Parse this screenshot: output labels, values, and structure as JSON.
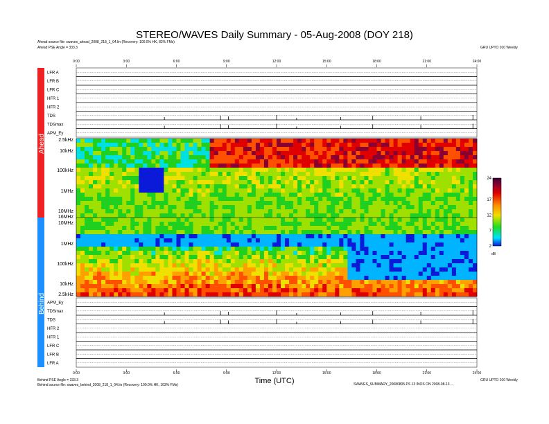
{
  "title": "STEREO/WAVES Daily Summary - 05-Aug-2008 (DOY 218)",
  "header": {
    "ahead_source": "Ahead source file: swaves_ahead_2008_218_1_04.lin (Recovery: 100.0% HK, 82% FMs)",
    "ahead_angle": "Ahead PSE Angle = 333.3",
    "credit": "GRU UPTO 010 Weekly"
  },
  "footer": {
    "behind_angle": "Behind PSE Angle = 333.3",
    "behind_source": "Behind source file: swaves_behind_2008_218_1_04.lin (Recovery: 100.0% HK, 103% FMs)",
    "path": "SWAVES_SUMMARY_20080805.PS 13 INOS ON 2008-08-13 ...",
    "credit": "GRU UPTO 010 Weekly"
  },
  "colors": {
    "ahead": "#ee2222",
    "behind": "#1e8fff",
    "blank": "#0a1ad8",
    "sat": "#3a003a"
  },
  "spacecraft": {
    "ahead_label": "Ahead",
    "behind_label": "Behind"
  },
  "chart_data": {
    "type": "heatmap",
    "xlabel": "Time (UTC)",
    "xlim": [
      "00:00",
      "24:00"
    ],
    "time_ticks": [
      "0:00",
      "3:00",
      "6:00",
      "9:00",
      "12:00",
      "15:00",
      "18:00",
      "21:00",
      "24:00"
    ],
    "upper_panels": [
      "LFR A",
      "LFR B",
      "LFR C",
      "HFR 1",
      "HFR 2",
      "TDS",
      "TDSmax",
      "APM_Ey"
    ],
    "lower_panels": [
      "APM_Ey",
      "TDSmax",
      "TDS",
      "HFR 2",
      "HFR 1",
      "LFR C",
      "LFR B",
      "LFR A"
    ],
    "spectrogram_ahead_freq_labels": [
      "2.5kHz",
      "10kHz",
      "100kHz",
      "1MHz",
      "10MHz",
      "16MHz"
    ],
    "spectrogram_behind_freq_labels": [
      "10MHz",
      "1MHz",
      "100kHz",
      "10kHz",
      "2.5kHz"
    ],
    "colorbar": {
      "label": "dB",
      "ticks": [
        24,
        17,
        12,
        7,
        2
      ],
      "range": [
        2,
        24
      ]
    }
  }
}
